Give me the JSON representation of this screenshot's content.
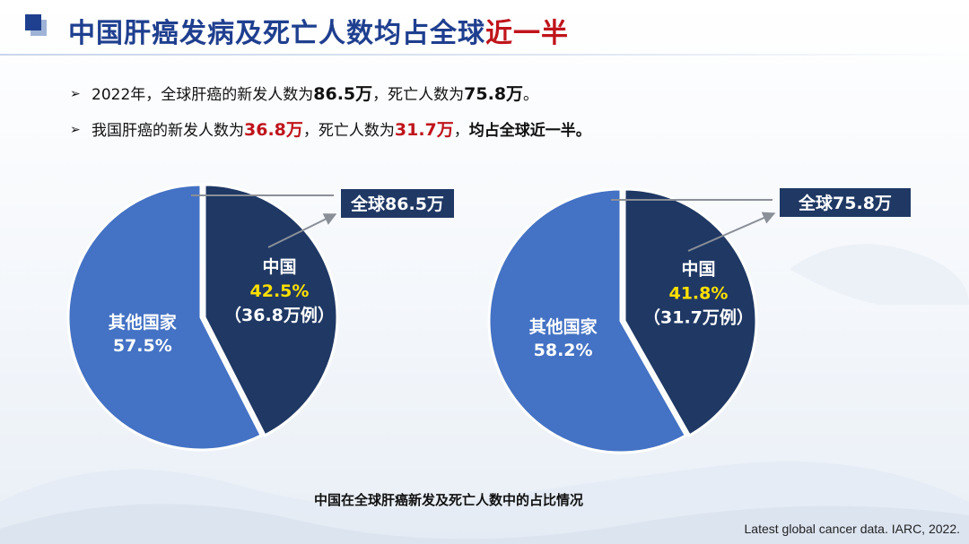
{
  "title": {
    "main": "中国肝癌发病及死亡人数均占全球",
    "highlight": "近一半"
  },
  "bullets": [
    {
      "pre": "2022年，全球肝癌的新发人数为",
      "v1": "86.5万",
      "mid": "，死亡人数为",
      "v2": "75.8万",
      "post": "。"
    },
    {
      "pre": "我国肝癌的新发人数为",
      "v1": "36.8万",
      "mid": "，死亡人数为",
      "v2": "31.7万",
      "sep": "，",
      "post": "均占全球近一半。"
    }
  ],
  "chart_data": [
    {
      "type": "pie",
      "global_label": "全球86.5万",
      "slices": [
        {
          "label": "中国",
          "percent_label": "42.5%",
          "value": 42.5,
          "detail": "（36.8万例）",
          "color": "#1f3864"
        },
        {
          "label": "其他国家",
          "percent_label": "57.5%",
          "value": 57.5,
          "detail": "",
          "color": "#4472c4"
        }
      ]
    },
    {
      "type": "pie",
      "global_label": "全球75.8万",
      "slices": [
        {
          "label": "中国",
          "percent_label": "41.8%",
          "value": 41.8,
          "detail": "（31.7万例）",
          "color": "#1f3864"
        },
        {
          "label": "其他国家",
          "percent_label": "58.2%",
          "value": 58.2,
          "detail": "",
          "color": "#4472c4"
        }
      ]
    }
  ],
  "caption": "中国在全球肝癌新发及死亡人数中的占比情况",
  "source": "Latest global cancer data. IARC, 2022.",
  "colors": {
    "title": "#1f3f8f",
    "highlight": "#c0141b",
    "yellow": "#ffe000",
    "label_bg": "#1f3864"
  }
}
